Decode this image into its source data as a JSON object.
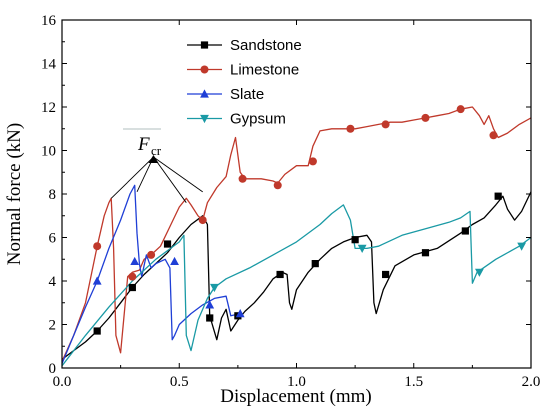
{
  "chart_data": {
    "type": "line",
    "xlabel": "Displacement (mm)",
    "ylabel": "Normal force (kN)",
    "xlim": [
      0,
      2.0
    ],
    "ylim": [
      0,
      16
    ],
    "x_ticks": [
      0,
      0.5,
      1.0,
      1.5,
      2.0
    ],
    "x_tick_labels": [
      "0.0",
      "0.5",
      "1.0",
      "1.5",
      "2.0"
    ],
    "y_ticks": [
      0,
      2,
      4,
      6,
      8,
      10,
      12,
      14,
      16
    ],
    "y_tick_labels": [
      "0",
      "2",
      "4",
      "6",
      "8",
      "10",
      "12",
      "14",
      "16"
    ],
    "grid": false,
    "legend_position": "top-right",
    "annotation": {
      "main": "F",
      "sub": "cr",
      "label_at": [
        0.36,
        15.2
      ],
      "arrow_tip": [
        0.39,
        9.7
      ],
      "targets": [
        [
          0.21,
          7.8
        ],
        [
          0.32,
          8.1
        ],
        [
          0.53,
          7.6
        ],
        [
          0.6,
          8.1
        ]
      ]
    },
    "series": [
      {
        "name": "Sandstone",
        "color": "#000000",
        "marker": "square",
        "points": [
          [
            0,
            0.4
          ],
          [
            0.05,
            0.8
          ],
          [
            0.1,
            1.2
          ],
          [
            0.15,
            1.7
          ],
          [
            0.2,
            2.3
          ],
          [
            0.25,
            3.0
          ],
          [
            0.3,
            3.7
          ],
          [
            0.35,
            4.3
          ],
          [
            0.4,
            4.8
          ],
          [
            0.45,
            5.3
          ],
          [
            0.5,
            6.0
          ],
          [
            0.55,
            6.6
          ],
          [
            0.6,
            7.0
          ],
          [
            0.62,
            6.6
          ],
          [
            0.63,
            2.4
          ],
          [
            0.66,
            1.3
          ],
          [
            0.68,
            2.3
          ],
          [
            0.7,
            2.7
          ],
          [
            0.72,
            1.7
          ],
          [
            0.75,
            2.2
          ],
          [
            0.78,
            2.6
          ],
          [
            0.82,
            3.0
          ],
          [
            0.86,
            3.5
          ],
          [
            0.9,
            4.1
          ],
          [
            0.94,
            4.4
          ],
          [
            0.96,
            4.3
          ],
          [
            0.97,
            3.0
          ],
          [
            0.98,
            2.7
          ],
          [
            1.0,
            3.6
          ],
          [
            1.05,
            4.4
          ],
          [
            1.1,
            5.0
          ],
          [
            1.15,
            5.5
          ],
          [
            1.2,
            5.8
          ],
          [
            1.25,
            6.0
          ],
          [
            1.3,
            6.1
          ],
          [
            1.32,
            5.8
          ],
          [
            1.33,
            3.0
          ],
          [
            1.34,
            2.5
          ],
          [
            1.37,
            3.6
          ],
          [
            1.42,
            4.7
          ],
          [
            1.5,
            5.2
          ],
          [
            1.6,
            5.5
          ],
          [
            1.7,
            6.2
          ],
          [
            1.75,
            6.6
          ],
          [
            1.8,
            6.9
          ],
          [
            1.85,
            7.5
          ],
          [
            1.88,
            7.9
          ],
          [
            1.9,
            7.3
          ],
          [
            1.93,
            6.8
          ],
          [
            1.96,
            7.2
          ],
          [
            2.0,
            8.1
          ]
        ],
        "marker_points": [
          [
            0.15,
            1.7
          ],
          [
            0.3,
            3.7
          ],
          [
            0.45,
            5.7
          ],
          [
            0.63,
            2.3
          ],
          [
            0.75,
            2.4
          ],
          [
            0.93,
            4.3
          ],
          [
            1.08,
            4.8
          ],
          [
            1.25,
            5.9
          ],
          [
            1.38,
            4.3
          ],
          [
            1.55,
            5.3
          ],
          [
            1.72,
            6.3
          ],
          [
            1.86,
            7.9
          ]
        ]
      },
      {
        "name": "Limestone",
        "color": "#c0392b",
        "marker": "circle",
        "points": [
          [
            0,
            0.3
          ],
          [
            0.05,
            1.5
          ],
          [
            0.1,
            3.0
          ],
          [
            0.15,
            5.6
          ],
          [
            0.18,
            7.0
          ],
          [
            0.2,
            7.6
          ],
          [
            0.21,
            7.8
          ],
          [
            0.22,
            5.5
          ],
          [
            0.23,
            1.5
          ],
          [
            0.25,
            0.7
          ],
          [
            0.28,
            4.2
          ],
          [
            0.3,
            4.4
          ],
          [
            0.33,
            4.5
          ],
          [
            0.35,
            5.0
          ],
          [
            0.38,
            5.2
          ],
          [
            0.42,
            5.6
          ],
          [
            0.46,
            6.5
          ],
          [
            0.5,
            7.4
          ],
          [
            0.53,
            7.8
          ],
          [
            0.55,
            7.5
          ],
          [
            0.58,
            7.0
          ],
          [
            0.6,
            6.8
          ],
          [
            0.62,
            7.6
          ],
          [
            0.66,
            8.3
          ],
          [
            0.7,
            8.8
          ],
          [
            0.72,
            9.8
          ],
          [
            0.74,
            10.6
          ],
          [
            0.76,
            9.0
          ],
          [
            0.78,
            8.7
          ],
          [
            0.85,
            8.7
          ],
          [
            0.9,
            8.6
          ],
          [
            0.92,
            8.5
          ],
          [
            0.95,
            8.9
          ],
          [
            1.0,
            9.3
          ],
          [
            1.05,
            9.3
          ],
          [
            1.07,
            10.2
          ],
          [
            1.1,
            10.9
          ],
          [
            1.15,
            11.0
          ],
          [
            1.2,
            11.0
          ],
          [
            1.25,
            11.0
          ],
          [
            1.3,
            11.1
          ],
          [
            1.35,
            11.2
          ],
          [
            1.4,
            11.3
          ],
          [
            1.45,
            11.3
          ],
          [
            1.5,
            11.4
          ],
          [
            1.55,
            11.5
          ],
          [
            1.6,
            11.6
          ],
          [
            1.65,
            11.7
          ],
          [
            1.7,
            11.9
          ],
          [
            1.75,
            12.0
          ],
          [
            1.78,
            11.6
          ],
          [
            1.8,
            11.2
          ],
          [
            1.82,
            11.6
          ],
          [
            1.84,
            11.0
          ],
          [
            1.86,
            10.6
          ],
          [
            1.9,
            10.8
          ],
          [
            1.95,
            11.2
          ],
          [
            2.0,
            11.5
          ]
        ],
        "marker_points": [
          [
            0.15,
            5.6
          ],
          [
            0.3,
            4.2
          ],
          [
            0.38,
            5.2
          ],
          [
            0.6,
            6.8
          ],
          [
            0.77,
            8.7
          ],
          [
            0.92,
            8.4
          ],
          [
            1.07,
            9.5
          ],
          [
            1.23,
            11.0
          ],
          [
            1.38,
            11.2
          ],
          [
            1.55,
            11.5
          ],
          [
            1.7,
            11.9
          ],
          [
            1.84,
            10.7
          ]
        ]
      },
      {
        "name": "Slate",
        "color": "#1f3fd6",
        "marker": "triangle-up",
        "points": [
          [
            0,
            0.2
          ],
          [
            0.05,
            1.5
          ],
          [
            0.1,
            2.8
          ],
          [
            0.15,
            4.0
          ],
          [
            0.2,
            5.5
          ],
          [
            0.25,
            6.8
          ],
          [
            0.29,
            8.0
          ],
          [
            0.31,
            8.4
          ],
          [
            0.32,
            6.2
          ],
          [
            0.33,
            4.8
          ],
          [
            0.34,
            4.2
          ],
          [
            0.36,
            5.2
          ],
          [
            0.38,
            4.6
          ],
          [
            0.4,
            4.8
          ],
          [
            0.44,
            5.0
          ],
          [
            0.46,
            4.6
          ],
          [
            0.47,
            1.3
          ],
          [
            0.48,
            1.5
          ],
          [
            0.5,
            2.0
          ],
          [
            0.55,
            2.5
          ],
          [
            0.6,
            2.9
          ],
          [
            0.65,
            3.2
          ],
          [
            0.7,
            3.3
          ],
          [
            0.72,
            2.4
          ],
          [
            0.76,
            2.5
          ]
        ],
        "marker_points": [
          [
            0.15,
            4.0
          ],
          [
            0.31,
            4.9
          ],
          [
            0.48,
            4.9
          ],
          [
            0.63,
            2.9
          ],
          [
            0.76,
            2.5
          ]
        ]
      },
      {
        "name": "Gypsum",
        "color": "#1a9aa5",
        "marker": "triangle-down",
        "points": [
          [
            0,
            0.1
          ],
          [
            0.1,
            1.5
          ],
          [
            0.2,
            2.8
          ],
          [
            0.3,
            4.0
          ],
          [
            0.4,
            5.0
          ],
          [
            0.5,
            5.8
          ],
          [
            0.52,
            6.1
          ],
          [
            0.53,
            1.5
          ],
          [
            0.55,
            0.8
          ],
          [
            0.58,
            2.2
          ],
          [
            0.62,
            3.2
          ],
          [
            0.65,
            3.7
          ],
          [
            0.7,
            4.1
          ],
          [
            0.8,
            4.6
          ],
          [
            0.9,
            5.2
          ],
          [
            1.0,
            5.8
          ],
          [
            1.1,
            6.6
          ],
          [
            1.15,
            7.1
          ],
          [
            1.2,
            7.5
          ],
          [
            1.23,
            6.8
          ],
          [
            1.25,
            5.5
          ],
          [
            1.3,
            5.5
          ],
          [
            1.35,
            5.6
          ],
          [
            1.45,
            6.1
          ],
          [
            1.55,
            6.4
          ],
          [
            1.65,
            6.7
          ],
          [
            1.7,
            6.9
          ],
          [
            1.74,
            7.2
          ],
          [
            1.75,
            3.9
          ],
          [
            1.77,
            4.4
          ],
          [
            1.85,
            5.0
          ],
          [
            1.95,
            5.6
          ],
          [
            2.0,
            6.0
          ]
        ],
        "marker_points": [
          [
            0.65,
            3.7
          ],
          [
            1.28,
            5.5
          ],
          [
            1.78,
            4.4
          ],
          [
            1.96,
            5.6
          ]
        ]
      }
    ]
  }
}
